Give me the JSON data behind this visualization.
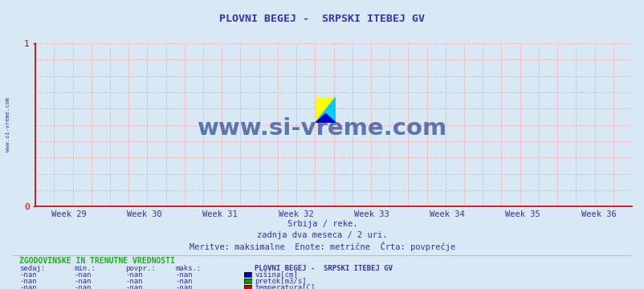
{
  "title": "PLOVNI BEGEJ -  SRPSKI ITEBEJ GV",
  "title_color": "#3333aa",
  "bg_color": "#d8e8f4",
  "plot_bg_color": "#d8e8f4",
  "grid_color": "#ffaaaa",
  "axis_color": "#cc0000",
  "ylim": [
    0,
    1
  ],
  "week_labels": [
    "Week 29",
    "Week 30",
    "Week 31",
    "Week 32",
    "Week 33",
    "Week 34",
    "Week 35",
    "Week 36"
  ],
  "tick_color": "#3333aa",
  "subtitle1": "Srbija / reke.",
  "subtitle2": "zadnja dva meseca / 2 uri.",
  "subtitle3": "Meritve: maksimalne  Enote: metrične  Črta: povprečje",
  "subtitle_color": "#3333aa",
  "watermark": "www.si-vreme.com",
  "watermark_color": "#1a3a8a",
  "sidebar_text": "www.si-vreme.com",
  "sidebar_color": "#3333aa",
  "footer_title": "ZGODOVINSKE IN TRENUTNE VREDNOSTI",
  "footer_title_color": "#22aa22",
  "footer_cols": [
    "sedaj:",
    "min.:",
    "povpr.:",
    "maks.:"
  ],
  "footer_station": "PLOVNI BEGEJ -  SRPSKI ITEBEJ GV",
  "footer_rows": [
    [
      "-nan",
      "-nan",
      "-nan",
      "-nan",
      "#0000bb",
      "višina[cm]"
    ],
    [
      "-nan",
      "-nan",
      "-nan",
      "-nan",
      "#009900",
      "pretok[m3/s]"
    ],
    [
      "-nan",
      "-nan",
      "-nan",
      "-nan",
      "#cc0000",
      "temperatura[C]"
    ]
  ],
  "footer_text_color": "#3333aa"
}
